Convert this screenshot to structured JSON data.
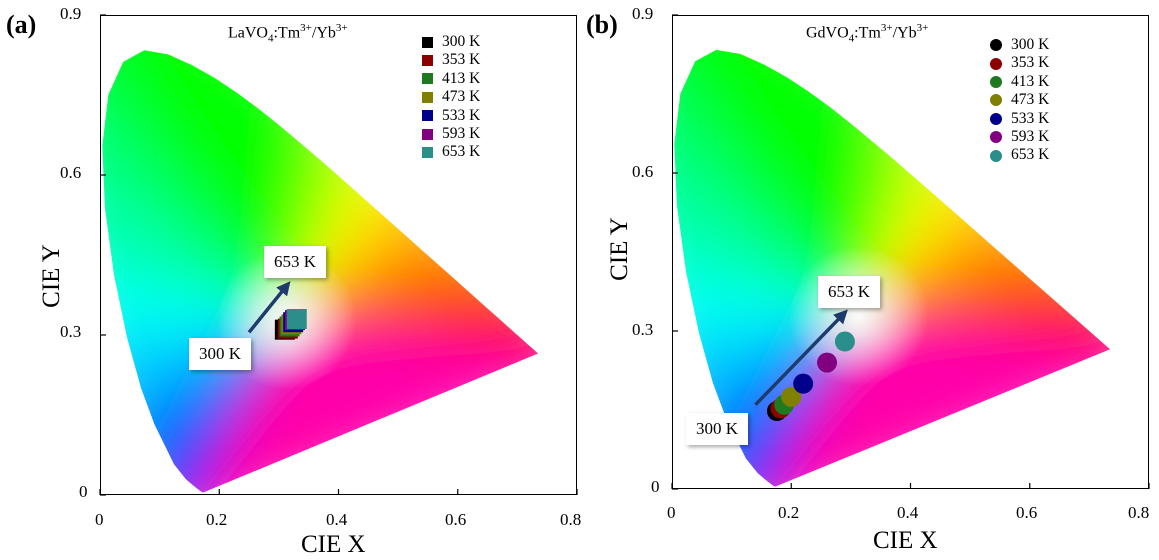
{
  "figures": [
    {
      "panel_label": "(a)",
      "title": {
        "host": "LaVO",
        "host_sub": "4",
        "sep": ":Tm",
        "tm_sup": "3+",
        "slash": "/Yb",
        "yb_sup": "3+"
      },
      "x_axis_title": "CIE X",
      "y_axis_title": "CIE Y",
      "x_ticks": [
        "0",
        "0.2",
        "0.4",
        "0.6",
        "0.8"
      ],
      "y_ticks": [
        "0",
        "0.3",
        "0.6",
        "0.9"
      ],
      "callout_start": "300 K",
      "callout_end": "653 K",
      "legend_marker": "square"
    },
    {
      "panel_label": "(b)",
      "title": {
        "host": "GdVO",
        "host_sub": "4",
        "sep": ":Tm",
        "tm_sup": "3+",
        "slash": "/Yb",
        "yb_sup": "3+"
      },
      "x_axis_title": "CIE X",
      "y_axis_title": "CIE Y",
      "x_ticks": [
        "0",
        "0.2",
        "0.4",
        "0.6",
        "0.8"
      ],
      "y_ticks": [
        "0",
        "0.3",
        "0.6",
        "0.9"
      ],
      "callout_start": "300 K",
      "callout_end": "653 K",
      "legend_marker": "circle"
    }
  ],
  "chart_data": [
    {
      "type": "scatter",
      "title": "LaVO4:Tm3+/Yb3+",
      "xlabel": "CIE X",
      "ylabel": "CIE Y",
      "xlim": [
        0,
        0.8
      ],
      "ylim": [
        0,
        0.9
      ],
      "background": "CIE 1931 chromaticity diagram",
      "marker": "square",
      "legend_position": "top-right",
      "series": [
        {
          "name": "300 K",
          "color": "#000000",
          "x": 0.31,
          "y": 0.31
        },
        {
          "name": "353 K",
          "color": "#8b0000",
          "x": 0.315,
          "y": 0.312
        },
        {
          "name": "413 K",
          "color": "#1f7a1f",
          "x": 0.318,
          "y": 0.316
        },
        {
          "name": "473 K",
          "color": "#808000",
          "x": 0.321,
          "y": 0.32
        },
        {
          "name": "533 K",
          "color": "#00008b",
          "x": 0.324,
          "y": 0.324
        },
        {
          "name": "593 K",
          "color": "#800080",
          "x": 0.327,
          "y": 0.328
        },
        {
          "name": "653 K",
          "color": "#2a8f8a",
          "x": 0.33,
          "y": 0.33
        }
      ],
      "annotations": [
        {
          "text": "300 K",
          "arrow_from": [
            0.25,
            0.305
          ],
          "arrow_to": [
            0.315,
            0.395
          ]
        },
        {
          "text": "653 K"
        }
      ]
    },
    {
      "type": "scatter",
      "title": "GdVO4:Tm3+/Yb3+",
      "xlabel": "CIE X",
      "ylabel": "CIE Y",
      "xlim": [
        0,
        0.8
      ],
      "ylim": [
        0,
        0.9
      ],
      "background": "CIE 1931 chromaticity diagram",
      "marker": "circle",
      "legend_position": "top-right",
      "series": [
        {
          "name": "300 K",
          "color": "#000000",
          "x": 0.176,
          "y": 0.148
        },
        {
          "name": "353 K",
          "color": "#8b0000",
          "x": 0.182,
          "y": 0.153
        },
        {
          "name": "413 K",
          "color": "#1f7a1f",
          "x": 0.188,
          "y": 0.16
        },
        {
          "name": "473 K",
          "color": "#808000",
          "x": 0.2,
          "y": 0.175
        },
        {
          "name": "533 K",
          "color": "#00008b",
          "x": 0.22,
          "y": 0.2
        },
        {
          "name": "593 K",
          "color": "#800080",
          "x": 0.26,
          "y": 0.24
        },
        {
          "name": "653 K",
          "color": "#2a8f8a",
          "x": 0.29,
          "y": 0.28
        }
      ],
      "annotations": [
        {
          "text": "300 K",
          "arrow_from": [
            0.14,
            0.16
          ],
          "arrow_to": [
            0.29,
            0.335
          ]
        },
        {
          "text": "653 K"
        }
      ]
    }
  ]
}
